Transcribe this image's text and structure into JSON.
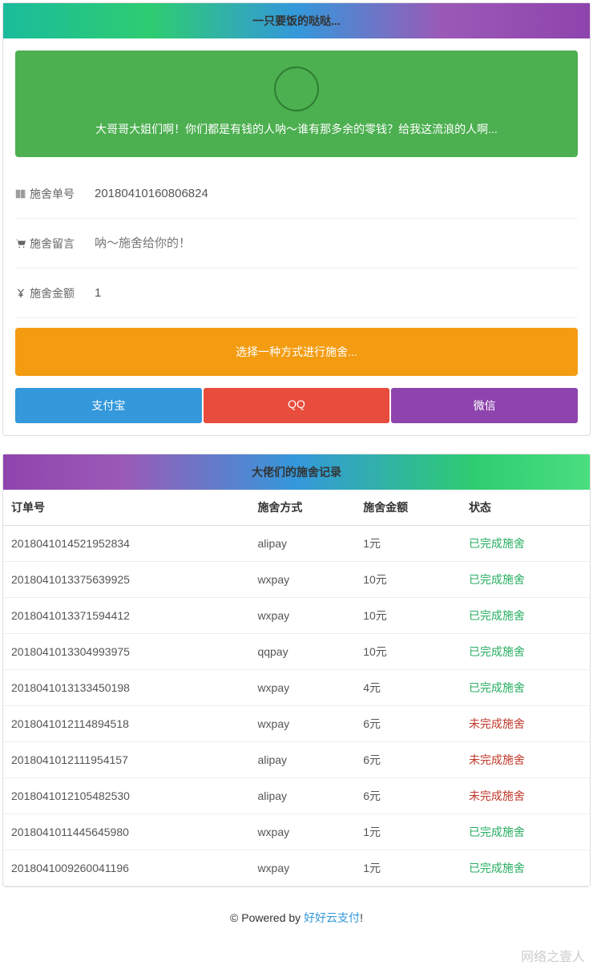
{
  "header1": "一只要饭的哒哒...",
  "banner_text": "大哥哥大姐们啊！你们都是有钱的人呐～谁有那多余的零钱？给我这流浪的人啊...",
  "form": {
    "order_label": "施舍单号",
    "order_value": "20180410160806824",
    "msg_label": "施舍留言",
    "msg_placeholder": "呐～施舍给你的！",
    "amount_label": "施舍金额",
    "amount_value": "1"
  },
  "orange_text": "选择一种方式进行施舍...",
  "pay": {
    "alipay": "支付宝",
    "qq": "QQ",
    "wechat": "微信"
  },
  "header2": "大佬们的施舍记录",
  "table": {
    "cols": [
      "订单号",
      "施舍方式",
      "施舍金额",
      "状态"
    ],
    "rows": [
      {
        "id": "2018041014521952834",
        "method": "alipay",
        "amount": "1元",
        "status": "已完成施舍",
        "done": true
      },
      {
        "id": "2018041013375639925",
        "method": "wxpay",
        "amount": "10元",
        "status": "已完成施舍",
        "done": true
      },
      {
        "id": "2018041013371594412",
        "method": "wxpay",
        "amount": "10元",
        "status": "已完成施舍",
        "done": true
      },
      {
        "id": "2018041013304993975",
        "method": "qqpay",
        "amount": "10元",
        "status": "已完成施舍",
        "done": true
      },
      {
        "id": "2018041013133450198",
        "method": "wxpay",
        "amount": "4元",
        "status": "已完成施舍",
        "done": true
      },
      {
        "id": "2018041012114894518",
        "method": "wxpay",
        "amount": "6元",
        "status": "未完成施舍",
        "done": false
      },
      {
        "id": "2018041012111954157",
        "method": "alipay",
        "amount": "6元",
        "status": "未完成施舍",
        "done": false
      },
      {
        "id": "2018041012105482530",
        "method": "alipay",
        "amount": "6元",
        "status": "未完成施舍",
        "done": false
      },
      {
        "id": "2018041011445645980",
        "method": "wxpay",
        "amount": "1元",
        "status": "已完成施舍",
        "done": true
      },
      {
        "id": "2018041009260041196",
        "method": "wxpay",
        "amount": "1元",
        "status": "已完成施舍",
        "done": true
      }
    ]
  },
  "footer": {
    "prefix": "© Powered by ",
    "link": "好好云支付",
    "suffix": "!"
  },
  "watermark": "网络之壹人",
  "colors": {
    "green": "#4caf50",
    "orange": "#f39c12",
    "alipay": "#3498db",
    "qq": "#e74c3c",
    "wechat": "#8e44ad",
    "done": "#27ae60",
    "pending": "#c0392b"
  }
}
